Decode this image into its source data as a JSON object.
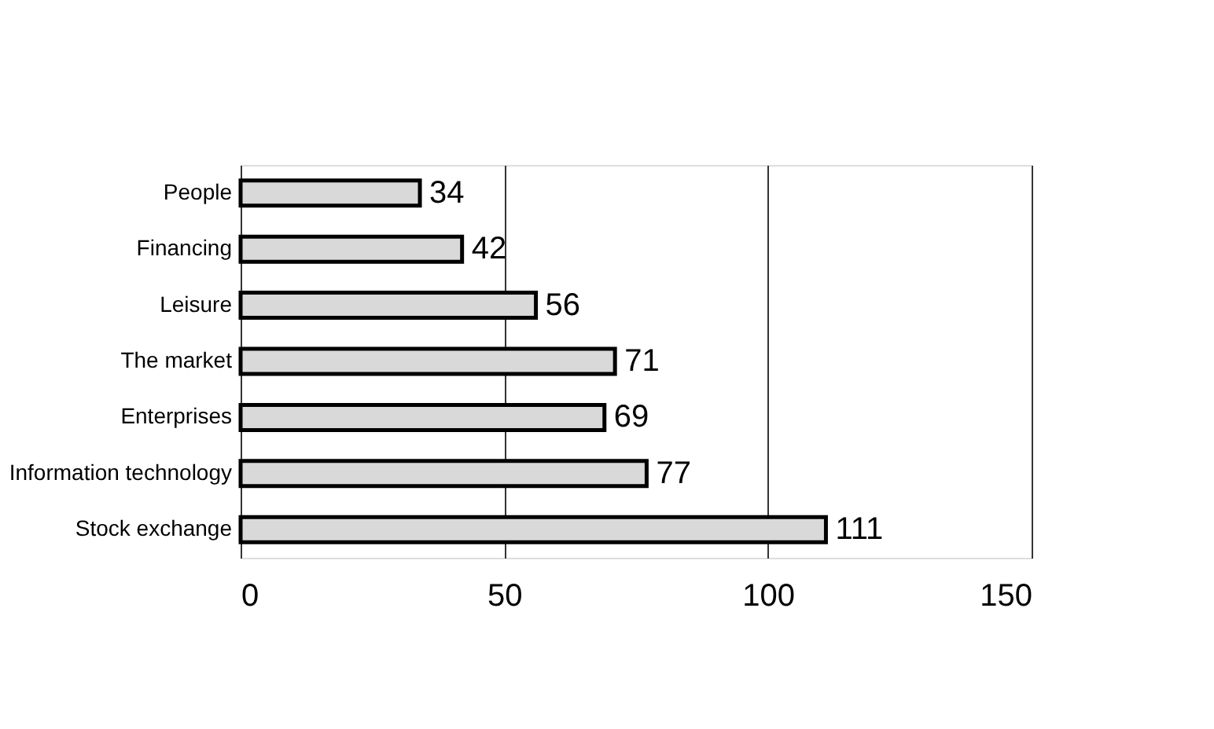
{
  "chart_data": {
    "type": "bar",
    "orientation": "horizontal",
    "categories": [
      "People",
      "Financing",
      "Leisure",
      "The market",
      "Enterprises",
      "Information technology",
      "Stock exchange"
    ],
    "values": [
      34,
      42,
      56,
      71,
      69,
      77,
      111
    ],
    "color": "#d9d9d9",
    "xlim": [
      0,
      150
    ],
    "xticks": [
      0,
      50,
      100,
      150
    ],
    "grid": "x",
    "data_labels": true
  }
}
